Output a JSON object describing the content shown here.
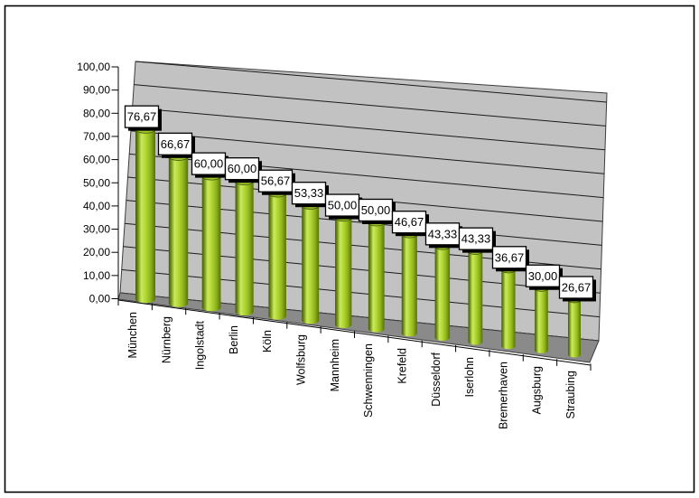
{
  "chart_data": {
    "type": "bar",
    "style": "3d-cylinder",
    "title": "",
    "xlabel": "",
    "ylabel": "",
    "legend": null,
    "grid": true,
    "categories": [
      "München",
      "Nürnberg",
      "Ingolstadt",
      "Berlin",
      "Köln",
      "Wolfsburg",
      "Mannheim",
      "Schwenningen",
      "Krefeld",
      "Düsseldorf",
      "Iserlohn",
      "Bremerhaven",
      "Augsburg",
      "Straubing"
    ],
    "values": [
      76.67,
      66.67,
      60.0,
      60.0,
      56.67,
      53.33,
      50.0,
      50.0,
      46.67,
      43.33,
      43.33,
      36.67,
      30.0,
      26.67
    ],
    "value_labels": [
      "76,67",
      "66,67",
      "60,00",
      "60,00",
      "56,67",
      "53,33",
      "50,00",
      "50,00",
      "46,67",
      "43,33",
      "43,33",
      "36,67",
      "30,00",
      "26,67"
    ],
    "y_axis": {
      "min": 0,
      "max": 100,
      "step": 10,
      "tick_labels": [
        "0,00",
        "10,00",
        "20,00",
        "30,00",
        "40,00",
        "50,00",
        "60,00",
        "70,00",
        "80,00",
        "90,00",
        "100,00"
      ]
    },
    "colors": {
      "wall": "#c2c2c2",
      "floor": "#8a8a8a",
      "gridline": "#1a1a1a",
      "bar_main": "#a6ce39",
      "bar_gradient": [
        "#42570a",
        "#6d8f10",
        "#cbe95e",
        "#b4d836",
        "#8fb51d",
        "#577208"
      ],
      "bar_gradient_offsets": [
        0,
        0.12,
        0.3,
        0.5,
        0.75,
        1
      ],
      "bar_top": "#9cc228",
      "bar_top_rim": "#42570a",
      "label_box_bg": "#ffffff",
      "label_box_border": "#000000",
      "label_box_shadow": "#000000",
      "frame_border": "#000000"
    }
  }
}
